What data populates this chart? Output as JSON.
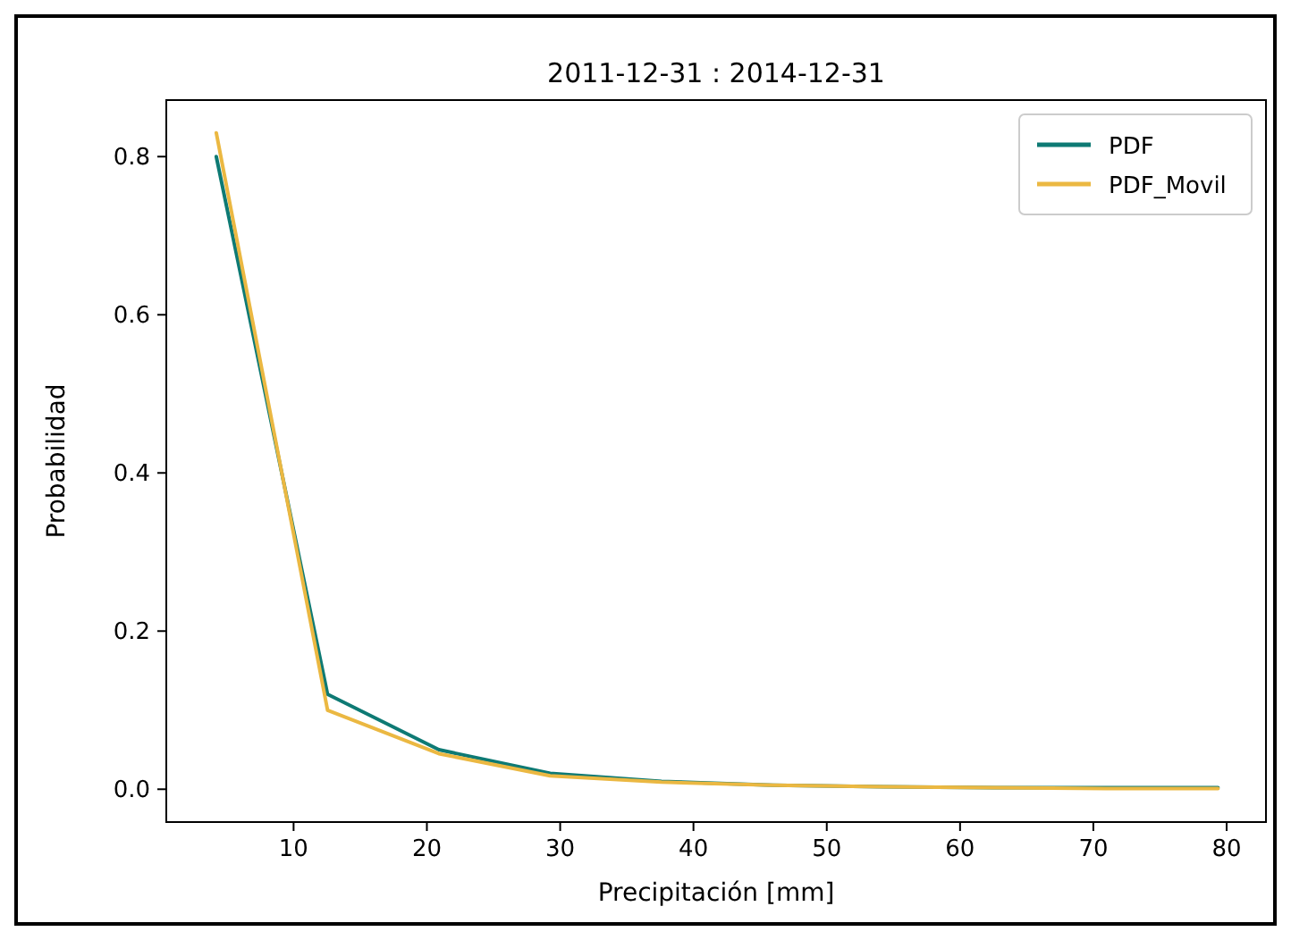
{
  "chart_data": {
    "type": "line",
    "title": "2011-12-31 : 2014-12-31",
    "xlabel": "Precipitación [mm]",
    "ylabel": "Probabilidad",
    "x": [
      4.2,
      12.55,
      20.9,
      29.25,
      37.6,
      45.95,
      54.3,
      62.65,
      71.0,
      79.35
    ],
    "series": [
      {
        "name": "PDF",
        "color": "#0e7a74",
        "values": [
          0.8,
          0.12,
          0.05,
          0.02,
          0.01,
          0.005,
          0.003,
          0.002,
          0.002,
          0.002
        ]
      },
      {
        "name": "PDF_Movil",
        "color": "#ebb842",
        "values": [
          0.83,
          0.1,
          0.045,
          0.017,
          0.009,
          0.005,
          0.003,
          0.002,
          0.001,
          0.001
        ]
      }
    ],
    "xlim": [
      0.45,
      82.95
    ],
    "ylim": [
      -0.0415,
      0.8715
    ],
    "xticks": [
      10,
      20,
      30,
      40,
      50,
      60,
      70,
      80
    ],
    "yticks": [
      {
        "value": 0,
        "label": "0.0"
      },
      {
        "value": 0.2,
        "label": "0.2"
      },
      {
        "value": 0.4,
        "label": "0.4"
      },
      {
        "value": 0.6,
        "label": "0.6"
      },
      {
        "value": 0.8,
        "label": "0.8"
      }
    ],
    "legend": "top right",
    "grid": false,
    "marker": "none",
    "line_style": "solid"
  }
}
